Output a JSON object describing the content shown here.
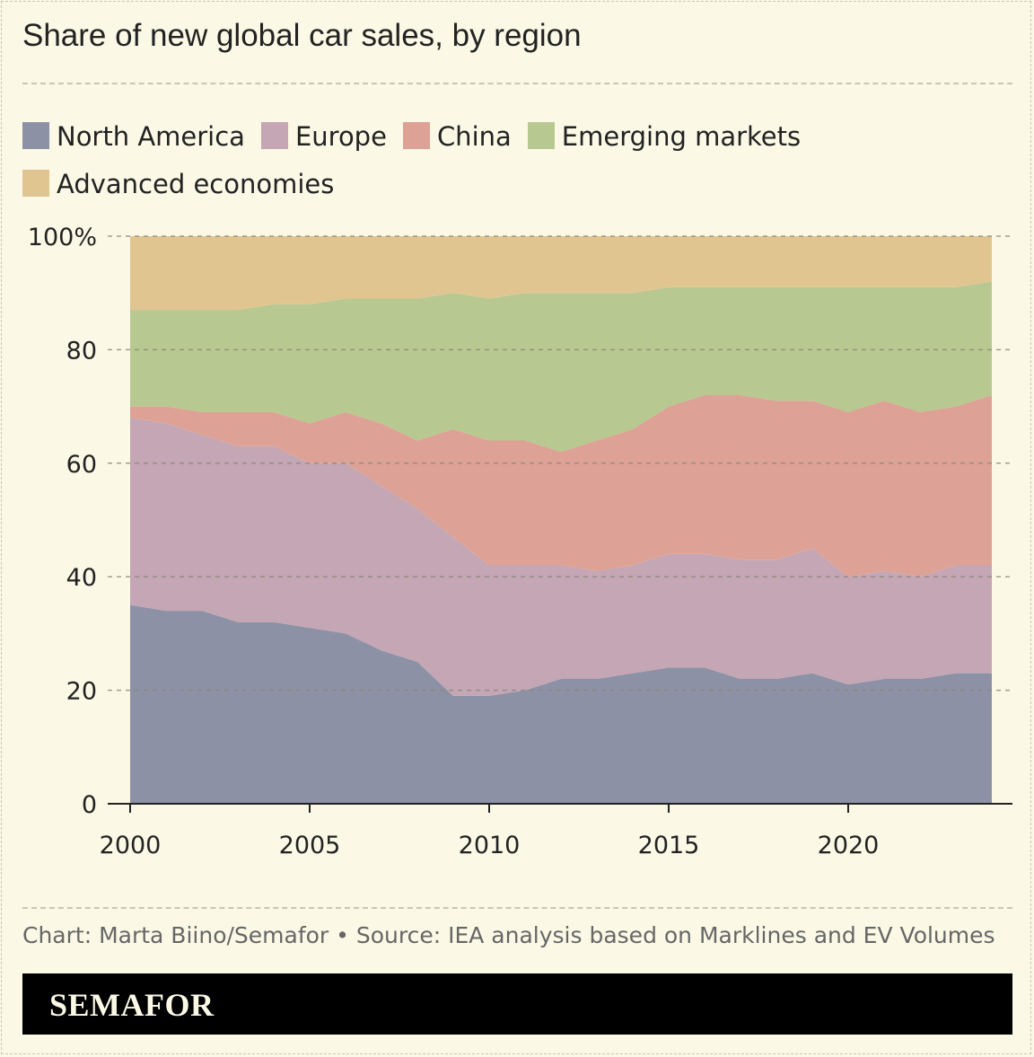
{
  "chart_data": {
    "type": "area",
    "stacked": true,
    "title": "Share of new global car sales, by region",
    "x": [
      2000,
      2001,
      2002,
      2003,
      2004,
      2005,
      2006,
      2007,
      2008,
      2009,
      2010,
      2011,
      2012,
      2013,
      2014,
      2015,
      2016,
      2017,
      2018,
      2019,
      2020,
      2021,
      2022,
      2023,
      2024
    ],
    "series": [
      {
        "name": "North America",
        "color": "#8c91a6",
        "values": [
          35,
          34,
          34,
          32,
          32,
          31,
          30,
          27,
          25,
          19,
          19,
          20,
          22,
          22,
          23,
          24,
          24,
          22,
          22,
          23,
          21,
          22,
          22,
          23,
          23
        ]
      },
      {
        "name": "Europe",
        "color": "#c4a6b4",
        "values": [
          33,
          33,
          31,
          31,
          31,
          29,
          30,
          29,
          27,
          28,
          23,
          22,
          20,
          19,
          19,
          20,
          20,
          21,
          21,
          22,
          19,
          19,
          18,
          19,
          19
        ]
      },
      {
        "name": "China",
        "color": "#dda295",
        "values": [
          2,
          3,
          4,
          6,
          6,
          7,
          9,
          11,
          12,
          19,
          22,
          22,
          20,
          23,
          24,
          26,
          28,
          29,
          28,
          26,
          29,
          30,
          29,
          28,
          30
        ]
      },
      {
        "name": "Emerging markets",
        "color": "#b7c891",
        "values": [
          17,
          17,
          18,
          18,
          19,
          21,
          20,
          22,
          25,
          24,
          25,
          26,
          28,
          26,
          24,
          21,
          19,
          19,
          20,
          20,
          22,
          20,
          22,
          21,
          20
        ]
      },
      {
        "name": "Advanced economies",
        "color": "#e1c591",
        "values": [
          13,
          13,
          13,
          13,
          12,
          12,
          11,
          11,
          11,
          10,
          11,
          10,
          10,
          10,
          10,
          9,
          9,
          9,
          9,
          9,
          9,
          9,
          9,
          9,
          8
        ]
      }
    ],
    "ylim": [
      0,
      100
    ],
    "yticks": [
      "0",
      "20",
      "40",
      "60",
      "80",
      "100%"
    ],
    "ytick_values": [
      0,
      20,
      40,
      60,
      80,
      100
    ],
    "xticks": [
      "2000",
      "2005",
      "2010",
      "2015",
      "2020"
    ],
    "xtick_values": [
      2000,
      2005,
      2010,
      2015,
      2020
    ],
    "grid": "horizontal dashed",
    "legend": "top"
  },
  "source": "Chart: Marta Biino/Semafor • Source: IEA analysis based on Marklines and EV Volumes",
  "brand": "SEMAFOR"
}
